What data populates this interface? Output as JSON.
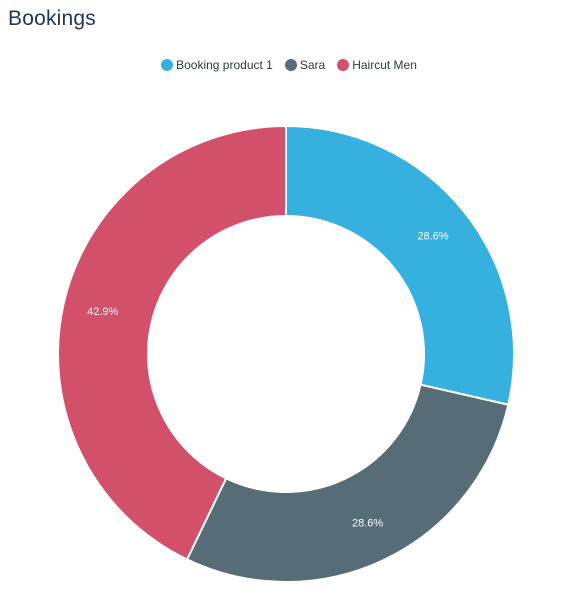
{
  "header": {
    "title": "Bookings"
  },
  "chart_data": {
    "type": "pie",
    "donut": true,
    "legend_position": "top-center",
    "categories": [
      "Booking product 1",
      "Sara",
      "Haircut Men"
    ],
    "values": [
      28.6,
      28.6,
      42.9
    ],
    "labels": [
      "28.6%",
      "28.6%",
      "42.9%"
    ],
    "colors": [
      "#36b1df",
      "#566d77",
      "#d3506b"
    ]
  }
}
